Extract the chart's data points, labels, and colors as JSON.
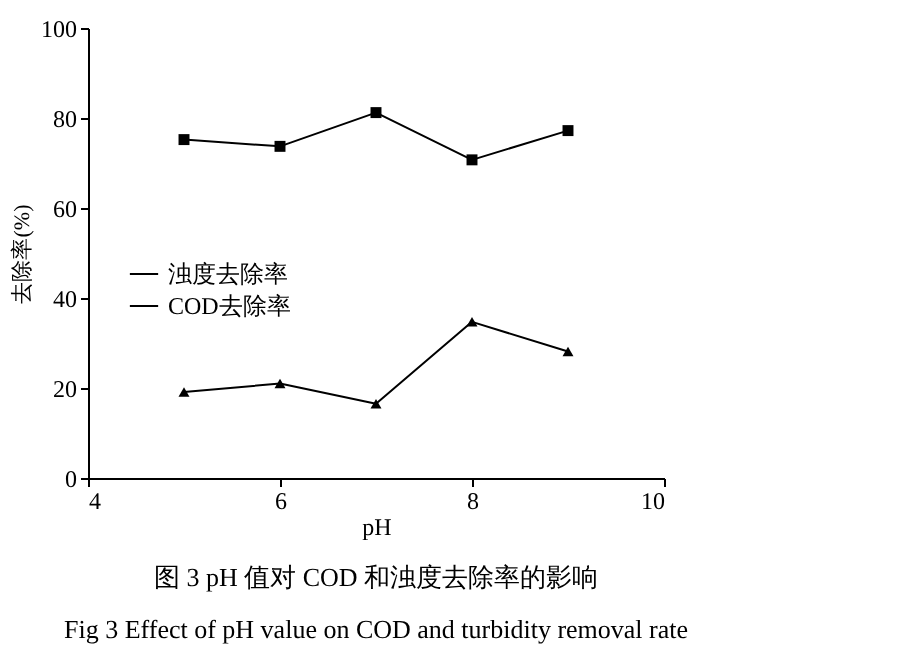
{
  "chart_data": {
    "type": "line",
    "xlabel": "pH",
    "ylabel": "去除率(%)",
    "x": [
      5,
      6,
      7,
      8,
      9
    ],
    "series": [
      {
        "name": "浊度去除率",
        "color": "#000000",
        "marker": "square",
        "values": [
          75.2,
          73.7,
          81.2,
          70.7,
          77.2
        ]
      },
      {
        "name": "COD去除率",
        "color": "#000000",
        "marker": "triangle",
        "values": [
          19.1,
          21,
          16.5,
          34.7,
          28.1
        ]
      }
    ],
    "xlim": [
      4,
      10
    ],
    "xticks": [
      4,
      6,
      8,
      10
    ],
    "ylim": [
      0,
      100
    ],
    "yticks": [
      0,
      20,
      40,
      60,
      80,
      100
    ],
    "grid": false,
    "legend": "left",
    "line_style": "solid",
    "annotations": [
      "图 3   pH 值对 COD 和浊度去除率的影响",
      "Fig 3   Effect of pH value on COD and turbidity removal rate"
    ]
  }
}
